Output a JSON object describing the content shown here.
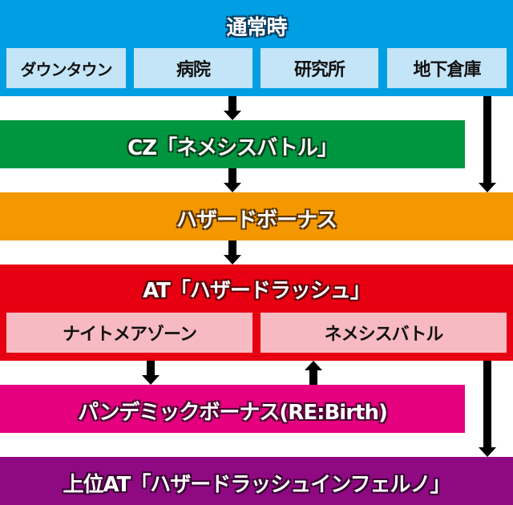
{
  "colors": {
    "normal": "#009fe3",
    "normal_sub": "#c4e5f7",
    "cz": "#009640",
    "bonus": "#f39800",
    "at": "#e60012",
    "at_sub": "#f7bac2",
    "pandemic": "#e4007f",
    "upper_at": "#8f0a82"
  },
  "normal": {
    "title": "通常時",
    "stages": [
      "ダウンタウン",
      "病院",
      "研究所",
      "地下倉庫"
    ]
  },
  "cz": {
    "title": "CZ「ネメシスバトル」"
  },
  "bonus": {
    "title": "ハザードボーナス"
  },
  "at": {
    "title": "AT「ハザードラッシュ」",
    "modes": [
      "ナイトメアゾーン",
      "ネメシスバトル"
    ]
  },
  "pandemic": {
    "title": "パンデミックボーナス(RE:Birth)"
  },
  "upper_at": {
    "title": "上位AT「ハザードラッシュインフェルノ」"
  }
}
